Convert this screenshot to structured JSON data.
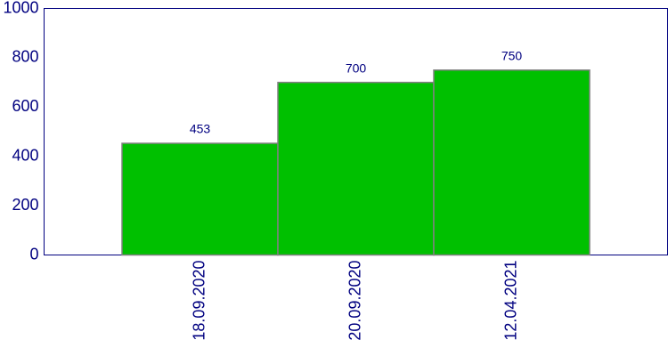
{
  "chart_data": {
    "type": "bar",
    "categories": [
      "18.09.2020",
      "20.09.2020",
      "12.04.2021"
    ],
    "values": [
      453,
      700,
      750
    ],
    "color": "#00c000",
    "ylim": [
      0,
      1000
    ],
    "yticks": [
      0,
      200,
      400,
      600,
      800,
      1000
    ],
    "grid": false
  }
}
